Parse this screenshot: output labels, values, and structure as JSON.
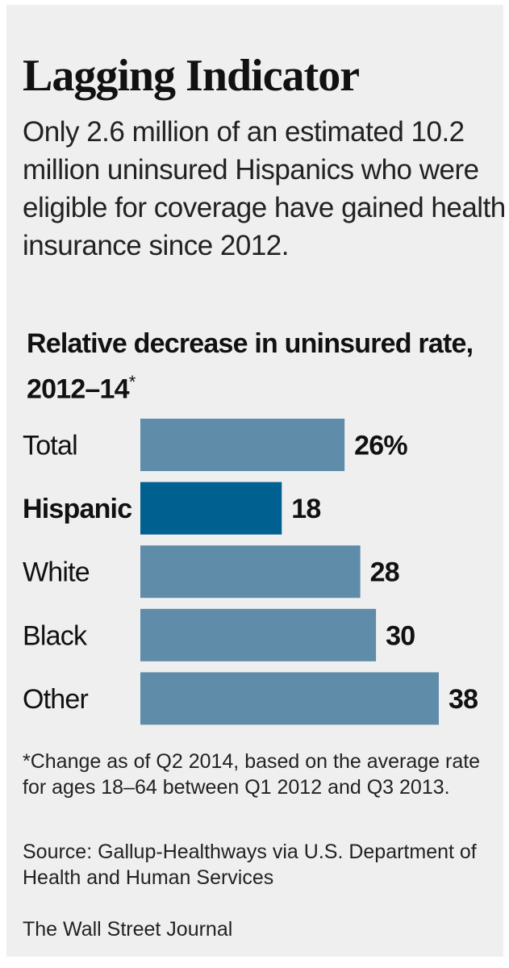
{
  "header": {
    "title": "Lagging Indicator",
    "subtitle": "Only 2.6 million of an estimated 10.2 million uninsured Hispanics who were eligible for coverage have gained health insurance since 2012."
  },
  "chart_data": {
    "type": "bar",
    "orientation": "horizontal",
    "title": "Relative decrease in uninsured rate, 2012–14",
    "title_marker": "*",
    "categories": [
      "Total",
      "Hispanic",
      "White",
      "Black",
      "Other"
    ],
    "values": [
      26,
      18,
      28,
      30,
      38
    ],
    "value_labels": [
      "26%",
      "18",
      "28",
      "30",
      "38"
    ],
    "highlight": "Hispanic",
    "unit": "%",
    "xlim": [
      0,
      38
    ],
    "colors": {
      "default": "#5e8ca9",
      "highlight": "#006190"
    }
  },
  "footer": {
    "note": "*Change as of Q2 2014, based on the average rate for ages 18–64 between Q1 2012 and Q3 2013.",
    "source": "Source: Gallup-Healthways via U.S. Department of Health and Human Services",
    "credit": "The Wall Street Journal"
  }
}
